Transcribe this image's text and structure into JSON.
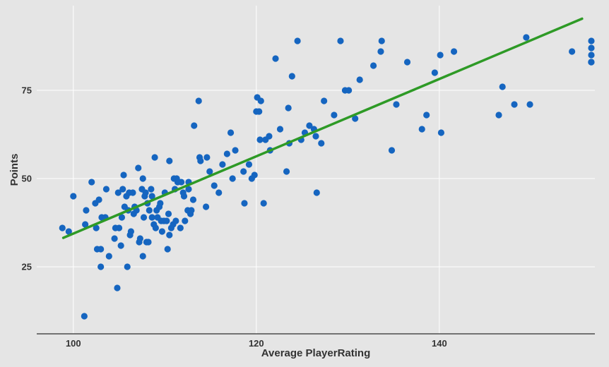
{
  "chart_data": {
    "type": "scatter",
    "title": "",
    "xlabel": "Average PlayerRating",
    "ylabel": "Points",
    "xlim": [
      96.0,
      157.0
    ],
    "ylim": [
      6.0,
      99.0
    ],
    "x_ticks": [
      100,
      120,
      140
    ],
    "y_ticks": [
      25,
      50,
      75
    ],
    "grid": true,
    "legend": "none",
    "colors": {
      "background": "#e5e5e5",
      "grid": "#ffffff",
      "points": "#1565c0",
      "trendline": "#2e9a26",
      "axis": "#4d4d4d",
      "text": "#333333"
    },
    "trendline": {
      "x": [
        98.9,
        155.6
      ],
      "y": [
        33.2,
        95.3
      ]
    },
    "points": [
      {
        "x": 98.8,
        "y": 36
      },
      {
        "x": 99.5,
        "y": 35
      },
      {
        "x": 100,
        "y": 45
      },
      {
        "x": 101.2,
        "y": 11
      },
      {
        "x": 101.3,
        "y": 37
      },
      {
        "x": 101.4,
        "y": 41
      },
      {
        "x": 102,
        "y": 49
      },
      {
        "x": 102.4,
        "y": 43
      },
      {
        "x": 102.5,
        "y": 36
      },
      {
        "x": 102.6,
        "y": 30
      },
      {
        "x": 102.8,
        "y": 44
      },
      {
        "x": 103,
        "y": 30
      },
      {
        "x": 103,
        "y": 25
      },
      {
        "x": 103.1,
        "y": 39
      },
      {
        "x": 103.5,
        "y": 39
      },
      {
        "x": 103.6,
        "y": 47
      },
      {
        "x": 103.9,
        "y": 28
      },
      {
        "x": 104.5,
        "y": 33
      },
      {
        "x": 104.6,
        "y": 36
      },
      {
        "x": 104.8,
        "y": 19
      },
      {
        "x": 104.9,
        "y": 46
      },
      {
        "x": 105,
        "y": 36
      },
      {
        "x": 105.2,
        "y": 31
      },
      {
        "x": 105.3,
        "y": 39
      },
      {
        "x": 105.4,
        "y": 47
      },
      {
        "x": 105.5,
        "y": 51
      },
      {
        "x": 105.6,
        "y": 42
      },
      {
        "x": 105.8,
        "y": 45
      },
      {
        "x": 106,
        "y": 41
      },
      {
        "x": 105.9,
        "y": 25
      },
      {
        "x": 106.1,
        "y": 46
      },
      {
        "x": 106.2,
        "y": 34
      },
      {
        "x": 106.3,
        "y": 35
      },
      {
        "x": 106.5,
        "y": 46
      },
      {
        "x": 106.6,
        "y": 40
      },
      {
        "x": 106.7,
        "y": 42
      },
      {
        "x": 106.9,
        "y": 41
      },
      {
        "x": 107.1,
        "y": 53
      },
      {
        "x": 107.2,
        "y": 32
      },
      {
        "x": 107.3,
        "y": 33
      },
      {
        "x": 107.5,
        "y": 47
      },
      {
        "x": 107.6,
        "y": 28
      },
      {
        "x": 107.6,
        "y": 50
      },
      {
        "x": 107.7,
        "y": 39
      },
      {
        "x": 107.8,
        "y": 45
      },
      {
        "x": 107.9,
        "y": 46
      },
      {
        "x": 108,
        "y": 32
      },
      {
        "x": 108.2,
        "y": 32
      },
      {
        "x": 108.1,
        "y": 43
      },
      {
        "x": 108.3,
        "y": 41
      },
      {
        "x": 108.5,
        "y": 47
      },
      {
        "x": 108.6,
        "y": 45
      },
      {
        "x": 108.6,
        "y": 39
      },
      {
        "x": 108.8,
        "y": 37
      },
      {
        "x": 108.9,
        "y": 56
      },
      {
        "x": 109,
        "y": 36
      },
      {
        "x": 109.1,
        "y": 41
      },
      {
        "x": 109.2,
        "y": 39
      },
      {
        "x": 109.4,
        "y": 42
      },
      {
        "x": 109.5,
        "y": 43
      },
      {
        "x": 109.6,
        "y": 38
      },
      {
        "x": 109.7,
        "y": 35
      },
      {
        "x": 109.9,
        "y": 38
      },
      {
        "x": 110,
        "y": 46
      },
      {
        "x": 110.2,
        "y": 38
      },
      {
        "x": 110.3,
        "y": 30
      },
      {
        "x": 110.4,
        "y": 40
      },
      {
        "x": 110.5,
        "y": 34
      },
      {
        "x": 110.5,
        "y": 55
      },
      {
        "x": 110.7,
        "y": 36
      },
      {
        "x": 110.9,
        "y": 37
      },
      {
        "x": 111,
        "y": 50
      },
      {
        "x": 111.1,
        "y": 47
      },
      {
        "x": 111.2,
        "y": 38
      },
      {
        "x": 111.3,
        "y": 50
      },
      {
        "x": 111.4,
        "y": 49
      },
      {
        "x": 111.7,
        "y": 36
      },
      {
        "x": 111.8,
        "y": 49
      },
      {
        "x": 112,
        "y": 46
      },
      {
        "x": 112.1,
        "y": 45
      },
      {
        "x": 112.2,
        "y": 38
      },
      {
        "x": 112.5,
        "y": 41
      },
      {
        "x": 112.6,
        "y": 47
      },
      {
        "x": 112.6,
        "y": 49
      },
      {
        "x": 112.8,
        "y": 40
      },
      {
        "x": 112.9,
        "y": 41
      },
      {
        "x": 113.1,
        "y": 44
      },
      {
        "x": 113.2,
        "y": 65
      },
      {
        "x": 113.7,
        "y": 72
      },
      {
        "x": 113.8,
        "y": 56
      },
      {
        "x": 113.9,
        "y": 55
      },
      {
        "x": 114.5,
        "y": 42
      },
      {
        "x": 114.6,
        "y": 56
      },
      {
        "x": 114.9,
        "y": 52
      },
      {
        "x": 115.4,
        "y": 48
      },
      {
        "x": 115.9,
        "y": 46
      },
      {
        "x": 116.3,
        "y": 54
      },
      {
        "x": 116.8,
        "y": 57
      },
      {
        "x": 117.2,
        "y": 63
      },
      {
        "x": 117.4,
        "y": 50
      },
      {
        "x": 117.7,
        "y": 58
      },
      {
        "x": 118.7,
        "y": 43
      },
      {
        "x": 118.6,
        "y": 52
      },
      {
        "x": 119.2,
        "y": 54
      },
      {
        "x": 119.5,
        "y": 50
      },
      {
        "x": 119.8,
        "y": 51
      },
      {
        "x": 120,
        "y": 69
      },
      {
        "x": 120.1,
        "y": 73
      },
      {
        "x": 120.3,
        "y": 69
      },
      {
        "x": 120.4,
        "y": 61
      },
      {
        "x": 120.5,
        "y": 72
      },
      {
        "x": 120.8,
        "y": 43
      },
      {
        "x": 121,
        "y": 61
      },
      {
        "x": 121.4,
        "y": 62
      },
      {
        "x": 121.5,
        "y": 58
      },
      {
        "x": 122.1,
        "y": 84
      },
      {
        "x": 122.6,
        "y": 64
      },
      {
        "x": 123.3,
        "y": 52
      },
      {
        "x": 123.5,
        "y": 70
      },
      {
        "x": 123.6,
        "y": 60
      },
      {
        "x": 123.9,
        "y": 79
      },
      {
        "x": 124.5,
        "y": 89
      },
      {
        "x": 124.9,
        "y": 61
      },
      {
        "x": 125.3,
        "y": 63
      },
      {
        "x": 125.8,
        "y": 65
      },
      {
        "x": 126.3,
        "y": 64
      },
      {
        "x": 126.6,
        "y": 46
      },
      {
        "x": 126.5,
        "y": 62
      },
      {
        "x": 127.1,
        "y": 60
      },
      {
        "x": 127.4,
        "y": 72
      },
      {
        "x": 128.5,
        "y": 68
      },
      {
        "x": 129.2,
        "y": 89
      },
      {
        "x": 129.7,
        "y": 75
      },
      {
        "x": 130.1,
        "y": 75
      },
      {
        "x": 130.8,
        "y": 67
      },
      {
        "x": 131.3,
        "y": 78
      },
      {
        "x": 132.8,
        "y": 82
      },
      {
        "x": 133.7,
        "y": 89
      },
      {
        "x": 133.6,
        "y": 86
      },
      {
        "x": 134.8,
        "y": 58
      },
      {
        "x": 135.3,
        "y": 71
      },
      {
        "x": 136.5,
        "y": 83
      },
      {
        "x": 138.1,
        "y": 64
      },
      {
        "x": 138.6,
        "y": 68
      },
      {
        "x": 139.5,
        "y": 80
      },
      {
        "x": 140.2,
        "y": 63
      },
      {
        "x": 140.1,
        "y": 85
      },
      {
        "x": 141.6,
        "y": 86
      },
      {
        "x": 146.5,
        "y": 68
      },
      {
        "x": 146.9,
        "y": 76
      },
      {
        "x": 148.2,
        "y": 71
      },
      {
        "x": 149.9,
        "y": 71
      },
      {
        "x": 149.5,
        "y": 90
      },
      {
        "x": 154.5,
        "y": 86
      },
      {
        "x": 156.6,
        "y": 83
      },
      {
        "x": 157.1,
        "y": 89
      },
      {
        "x": 157.8,
        "y": 87
      },
      {
        "x": 158.1,
        "y": 85
      },
      {
        "x": 158.4,
        "y": 83
      }
    ]
  }
}
